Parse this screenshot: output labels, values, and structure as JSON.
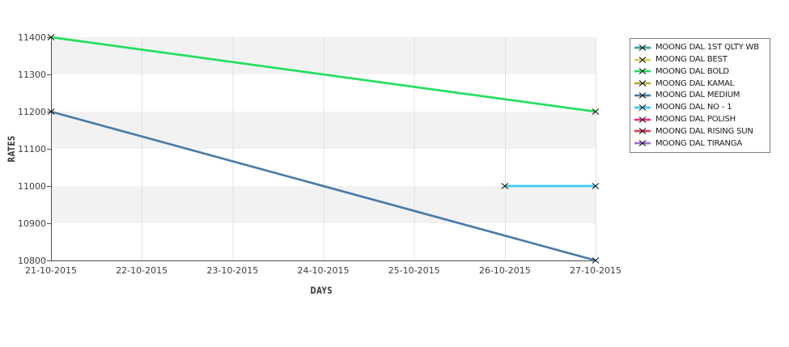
{
  "chart_data": {
    "type": "line",
    "title": "",
    "xlabel": "DAYS",
    "ylabel": "RATES",
    "x_categories": [
      "21-10-2015",
      "22-10-2015",
      "23-10-2015",
      "24-10-2015",
      "25-10-2015",
      "26-10-2015",
      "27-10-2015"
    ],
    "y_ticks": [
      11400,
      11300,
      11200,
      11100,
      11000,
      10900,
      10800
    ],
    "ylim": [
      10800,
      11400
    ],
    "grid": "vertical gridlines at each date; alternating gray/white horizontal bands every 100 units (gray band at top)",
    "legend_position": "outside-right",
    "marker": "x",
    "series": [
      {
        "name": "MOONG DAL 1ST QLTY WB",
        "color": "#38A3A3",
        "points": []
      },
      {
        "name": "MOONG DAL BEST",
        "color": "#D9D25C",
        "points": []
      },
      {
        "name": "MOONG DAL BOLD",
        "color": "#25DF60",
        "points": [
          {
            "x": "21-10-2015",
            "y": 11400
          },
          {
            "x": "27-10-2015",
            "y": 11200
          }
        ]
      },
      {
        "name": "MOONG DAL KAMAL",
        "color": "#B5AD40",
        "points": []
      },
      {
        "name": "MOONG DAL MEDIUM",
        "color": "#4A7CA8",
        "points": [
          {
            "x": "21-10-2015",
            "y": 11200
          },
          {
            "x": "27-10-2015",
            "y": 10800
          }
        ]
      },
      {
        "name": "MOONG DAL NO - 1",
        "color": "#3DC9F2",
        "points": [
          {
            "x": "26-10-2015",
            "y": 11000
          },
          {
            "x": "27-10-2015",
            "y": 11000
          }
        ]
      },
      {
        "name": "MOONG DAL POLISH",
        "color": "#E8318C",
        "points": []
      },
      {
        "name": "MOONG DAL RISING SUN",
        "color": "#E0405C",
        "points": []
      },
      {
        "name": "MOONG DAL TIRANGA",
        "color": "#9C73C9",
        "points": []
      }
    ]
  },
  "colors": {
    "background": "#ffffff",
    "band_gray": "#f2f2f2",
    "gridline": "#e0e0e0",
    "spine": "#4d4d4d",
    "tick_text": "#3d3d3d",
    "legend_border": "#7f7f7f",
    "legend_text": "#1a1a1a",
    "marker": "#111111"
  }
}
